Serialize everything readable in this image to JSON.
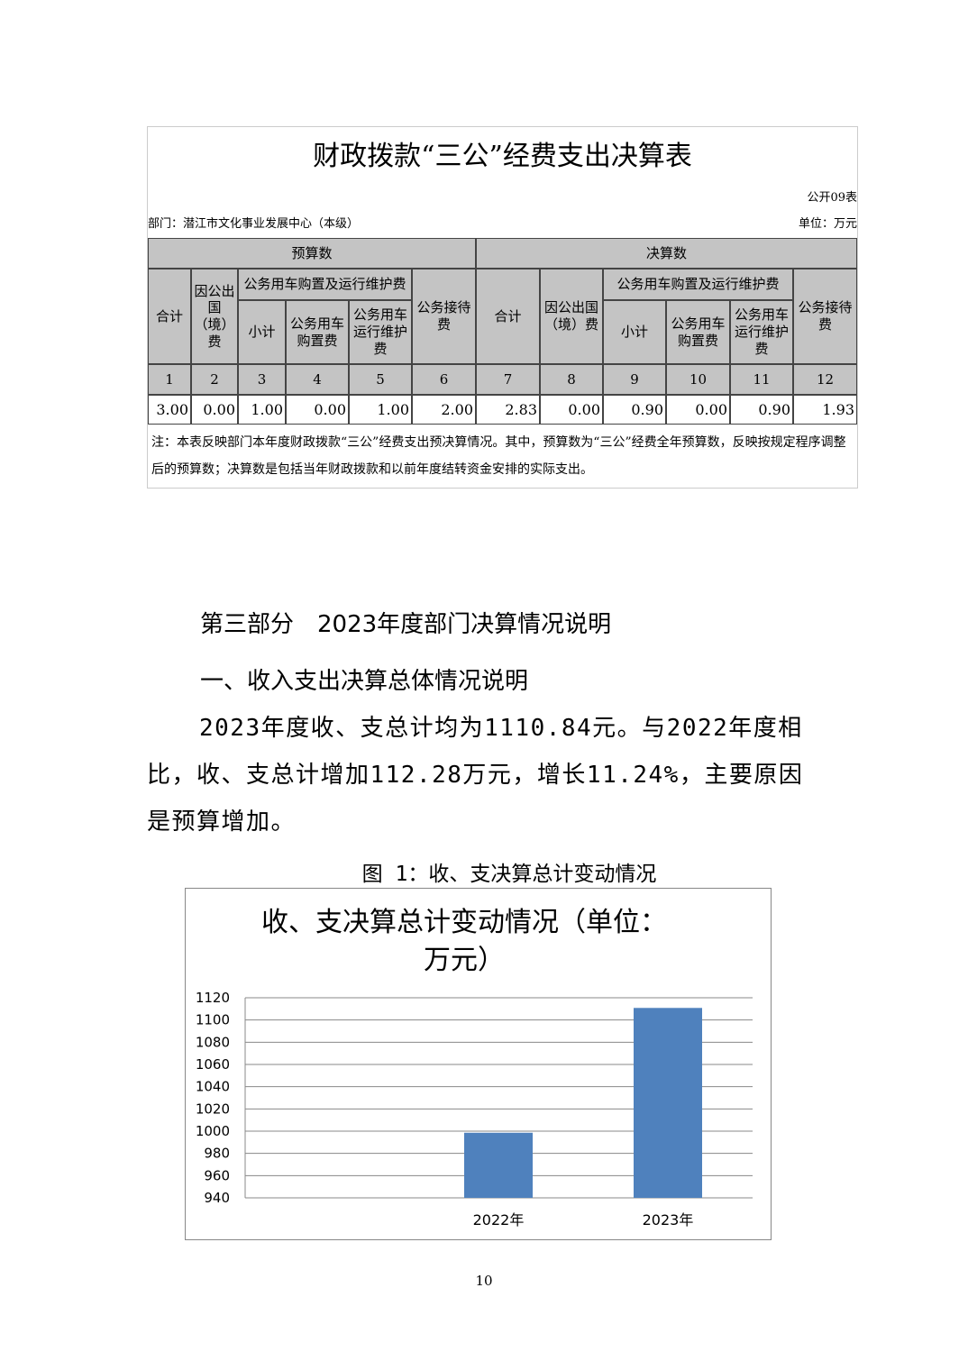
{
  "table": {
    "title": "财政拨款“三公”经费支出决算表",
    "form_no": "公开09表",
    "department": "部门：潜江市文化事业发展中心（本级）",
    "unit": "单位：万元",
    "group_budget": "预算数",
    "group_final": "决算数",
    "vehicle_group": "公务用车购置及运行维护费",
    "col_total": "合计",
    "col_abroad": "因公出国（境）费",
    "col_subtotal": "小计",
    "col_purchase": "公务用车购置费",
    "col_operation": "公务用车运行维护费",
    "col_reception": "公务接待费",
    "col_numbers": [
      "1",
      "2",
      "3",
      "4",
      "5",
      "6",
      "7",
      "8",
      "9",
      "10",
      "11",
      "12"
    ],
    "values": [
      "3.00",
      "0.00",
      "1.00",
      "0.00",
      "1.00",
      "2.00",
      "2.83",
      "0.00",
      "0.90",
      "0.00",
      "0.90",
      "1.93"
    ],
    "note": "注：本表反映部门本年度财政拨款“三公”经费支出预决算情况。其中，预算数为“三公”经费全年预算数，反映按规定程序调整后的预算数；决算数是包括当年财政拨款和以前年度结转资金安排的实际支出。"
  },
  "section_title": "第三部分　2023年度部门决算情况说明",
  "subsection_title": "一、收入支出决算总体情况说明",
  "paragraph": "2023年度收、支总计均为1110.84元。与2022年度相比，收、支总计增加112.28万元，增长11.24%，主要原因是预算增加。",
  "figure_caption": "图 1：收、支决算总计变动情况",
  "chart_data": {
    "type": "bar",
    "title": "收、支决算总计变动情况（单位：万元）",
    "title_line1": "收、支决算总计变动情况（单位：",
    "title_line2": "万元）",
    "categories": [
      "2022年",
      "2023年"
    ],
    "values": [
      998.56,
      1110.84
    ],
    "ylim": [
      940,
      1120
    ],
    "yticks": [
      "940",
      "960",
      "980",
      "1000",
      "1020",
      "1040",
      "1060",
      "1080",
      "1100",
      "1120"
    ],
    "grid": true,
    "bar_color": "#4f81bd"
  },
  "page_number": "10"
}
